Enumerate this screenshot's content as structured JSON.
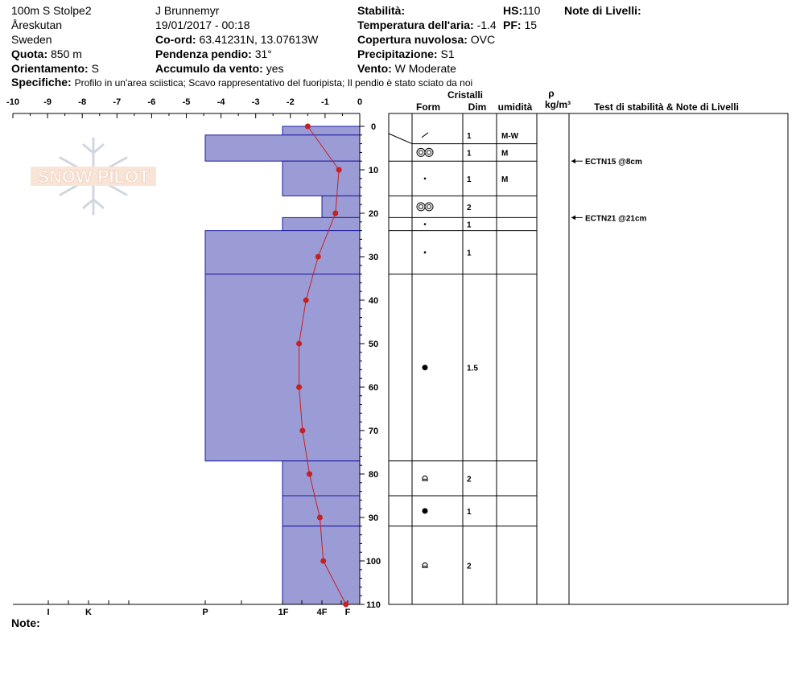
{
  "header": {
    "location": "100m S Stolpe2",
    "area": "Åreskutan",
    "country": "Sweden",
    "elevation_label": "Quota:",
    "elevation": "850 m",
    "aspect_label": "Orientamento:",
    "aspect": "S",
    "observer": "J Brunnemyr",
    "datetime": "19/01/2017 - 00:18",
    "coord_label": "Co-ord:",
    "coord": "63.41231N, 13.07613W",
    "slope_label": "Pendenza pendio:",
    "slope": "31°",
    "wind_load_label": "Accumulo da vento:",
    "wind_load": "yes",
    "stability_label": "Stabilità:",
    "stability": "",
    "air_temp_label": "Temperatura dell'aria:",
    "air_temp": "-1.4",
    "cloud_label": "Copertura nuvolosa:",
    "cloud": "OVC",
    "precip_label": "Precipitazione:",
    "precip": "S1",
    "wind_label": "Vento:",
    "wind": "W Moderate",
    "hs_label": "HS:",
    "hs": "110",
    "pf_label": "PF:",
    "pf": "15",
    "layer_notes_label": "Note di Livelli:",
    "spec_label": "Specifiche:",
    "spec_text": "Profilo in un'area sciistica; Scavo rappresentativo del fuoripista; Il pendio è stato sciato da noi"
  },
  "logo_text": "SNOW PILOT",
  "notes_label": "Note:",
  "columns": {
    "crystals": "Cristalli",
    "form": "Form",
    "size": "Dim",
    "moisture": "umidità",
    "rho": "ρ",
    "density_unit": "kg/m³",
    "stability_notes": "Test di stabilità & Note di Livelli"
  },
  "colors": {
    "hardness_fill": "#9b9bd6",
    "hardness_line": "#1c1ca0",
    "temp": "#c62020",
    "grid": "#000000"
  },
  "chart_data": {
    "type": "bar",
    "temperature_axis": {
      "range": [
        -10,
        0
      ],
      "ticks": [
        -10,
        -9,
        -8,
        -7,
        -6,
        -5,
        -4,
        -3,
        -2,
        -1,
        0
      ]
    },
    "depth_axis": {
      "range": [
        0,
        110
      ],
      "ticks": [
        0,
        10,
        20,
        30,
        40,
        50,
        60,
        70,
        80,
        90,
        100,
        110
      ]
    },
    "hardness_labels": [
      "I",
      "K",
      "P",
      "1F",
      "4F",
      "F"
    ],
    "hardness_layers": [
      {
        "top": 0,
        "bottom": 2,
        "hardness": "1F"
      },
      {
        "top": 2,
        "bottom": 8,
        "hardness": "P"
      },
      {
        "top": 8,
        "bottom": 16,
        "hardness": "1F"
      },
      {
        "top": 16,
        "bottom": 21,
        "hardness": "4F"
      },
      {
        "top": 21,
        "bottom": 24,
        "hardness": "1F"
      },
      {
        "top": 24,
        "bottom": 34,
        "hardness": "P"
      },
      {
        "top": 34,
        "bottom": 77,
        "hardness": "P"
      },
      {
        "top": 77,
        "bottom": 85,
        "hardness": "1F"
      },
      {
        "top": 85,
        "bottom": 92,
        "hardness": "1F"
      },
      {
        "top": 92,
        "bottom": 110,
        "hardness": "1F"
      }
    ],
    "temperature_profile": [
      {
        "depth": 0,
        "temp": -1.5
      },
      {
        "depth": 10,
        "temp": -0.6
      },
      {
        "depth": 20,
        "temp": -0.7
      },
      {
        "depth": 30,
        "temp": -1.2
      },
      {
        "depth": 40,
        "temp": -1.55
      },
      {
        "depth": 50,
        "temp": -1.75
      },
      {
        "depth": 60,
        "temp": -1.75
      },
      {
        "depth": 70,
        "temp": -1.65
      },
      {
        "depth": 80,
        "temp": -1.45
      },
      {
        "depth": 90,
        "temp": -1.15
      },
      {
        "depth": 100,
        "temp": -1.05
      },
      {
        "depth": 110,
        "temp": -0.4
      }
    ],
    "layers": [
      {
        "top": 0,
        "bottom": 4,
        "form_icon": "slash-icon",
        "size": "1",
        "moisture": "M-W"
      },
      {
        "top": 4,
        "bottom": 8,
        "form_icon": "double-circle-icon",
        "size": "1",
        "moisture": "M"
      },
      {
        "top": 8,
        "bottom": 16,
        "form_icon": "dot-icon",
        "size": "1",
        "moisture": "M"
      },
      {
        "top": 16,
        "bottom": 21,
        "form_icon": "double-circle-icon",
        "size": "2",
        "moisture": ""
      },
      {
        "top": 21,
        "bottom": 24,
        "form_icon": "dot-icon",
        "size": "1",
        "moisture": ""
      },
      {
        "top": 24,
        "bottom": 34,
        "form_icon": "dot-icon",
        "size": "1",
        "moisture": ""
      },
      {
        "top": 34,
        "bottom": 77,
        "form_icon": "filled-dot-icon",
        "size": "1.5",
        "moisture": ""
      },
      {
        "top": 77,
        "bottom": 85,
        "form_icon": "cup-icon",
        "size": "2",
        "moisture": ""
      },
      {
        "top": 85,
        "bottom": 92,
        "form_icon": "filled-dot-icon",
        "size": "1",
        "moisture": ""
      },
      {
        "top": 92,
        "bottom": 110,
        "form_icon": "cup-icon",
        "size": "2",
        "moisture": ""
      }
    ],
    "stability_tests": [
      {
        "depth": 8,
        "label": "ECTN15 @8cm"
      },
      {
        "depth": 21,
        "label": "ECTN21 @21cm"
      }
    ]
  }
}
